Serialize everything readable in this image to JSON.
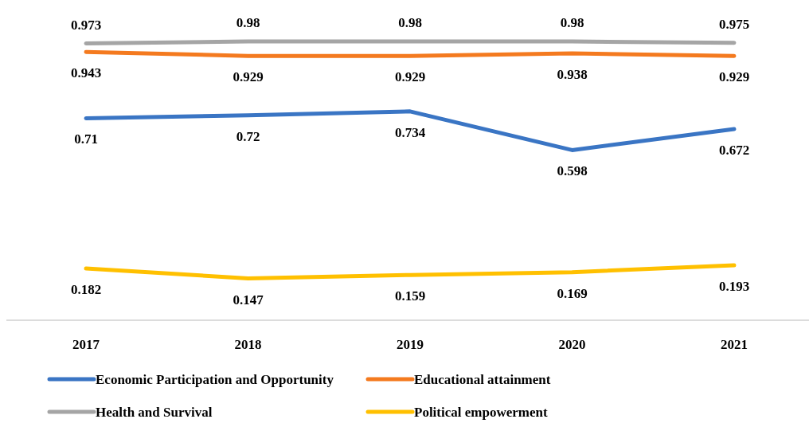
{
  "chart_data": {
    "type": "line",
    "categories": [
      "2017",
      "2018",
      "2019",
      "2020",
      "2021"
    ],
    "series": [
      {
        "name": "Economic Participation and Opportunity",
        "color": "#3a75c4",
        "values": [
          0.71,
          0.72,
          0.734,
          0.598,
          0.672
        ]
      },
      {
        "name": "Educational attainment",
        "color": "#f47a1f",
        "values": [
          0.943,
          0.929,
          0.929,
          0.938,
          0.929
        ]
      },
      {
        "name": "Health and Survival",
        "color": "#a5a5a5",
        "values": [
          0.973,
          0.98,
          0.98,
          0.98,
          0.975
        ]
      },
      {
        "name": "Political empowerment",
        "color": "#ffc000",
        "values": [
          0.182,
          0.147,
          0.159,
          0.169,
          0.193
        ]
      }
    ],
    "data_labels": true,
    "legend": "bottom",
    "grid": false,
    "marker": "none",
    "line_style": "solid"
  }
}
